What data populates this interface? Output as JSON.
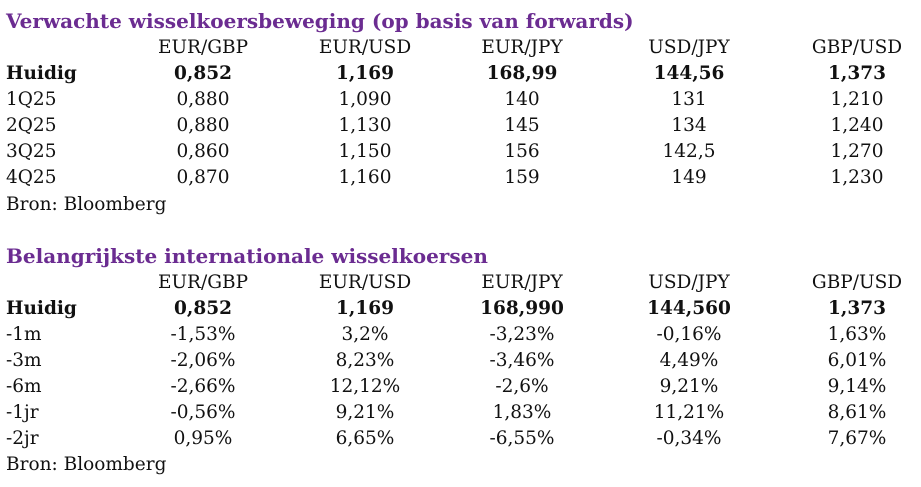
{
  "section1": {
    "title": "Verwachte wisselkoersbeweging (op basis van forwards)",
    "headers": [
      "EUR/GBP",
      "EUR/USD",
      "EUR/JPY",
      "USD/JPY",
      "GBP/USD"
    ],
    "rows": [
      {
        "label": "Huidig",
        "values": [
          "0,852",
          "1,169",
          "168,99",
          "144,56",
          "1,373"
        ]
      },
      {
        "label": "1Q25",
        "values": [
          "0,880",
          "1,090",
          "140",
          "131",
          "1,210"
        ]
      },
      {
        "label": "2Q25",
        "values": [
          "0,880",
          "1,130",
          "145",
          "134",
          "1,240"
        ]
      },
      {
        "label": "3Q25",
        "values": [
          "0,860",
          "1,150",
          "156",
          "142,5",
          "1,270"
        ]
      },
      {
        "label": "4Q25",
        "values": [
          "0,870",
          "1,160",
          "159",
          "149",
          "1,230"
        ]
      }
    ],
    "source": "Bron: Bloomberg"
  },
  "section2": {
    "title": "Belangrijkste internationale wisselkoersen",
    "headers": [
      "EUR/GBP",
      "EUR/USD",
      "EUR/JPY",
      "USD/JPY",
      "GBP/USD"
    ],
    "rows": [
      {
        "label": "Huidig",
        "values": [
          "0,852",
          "1,169",
          "168,990",
          "144,560",
          "1,373"
        ]
      },
      {
        "label": "-1m",
        "values": [
          "-1,53%",
          "3,2%",
          "-3,23%",
          "-0,16%",
          "1,63%"
        ]
      },
      {
        "label": "-3m",
        "values": [
          "-2,06%",
          "8,23%",
          "-3,46%",
          "4,49%",
          "6,01%"
        ]
      },
      {
        "label": "-6m",
        "values": [
          "-2,66%",
          "12,12%",
          "-2,6%",
          "9,21%",
          "9,14%"
        ]
      },
      {
        "label": "-1jr",
        "values": [
          "-0,56%",
          "9,21%",
          "1,83%",
          "11,21%",
          "8,61%"
        ]
      },
      {
        "label": "-2jr",
        "values": [
          "0,95%",
          "6,65%",
          "-6,55%",
          "-0,34%",
          "7,67%"
        ]
      }
    ],
    "source": "Bron: Bloomberg"
  },
  "colors": {
    "title": "#6b2c91",
    "text": "#111111",
    "background": "#ffffff"
  }
}
